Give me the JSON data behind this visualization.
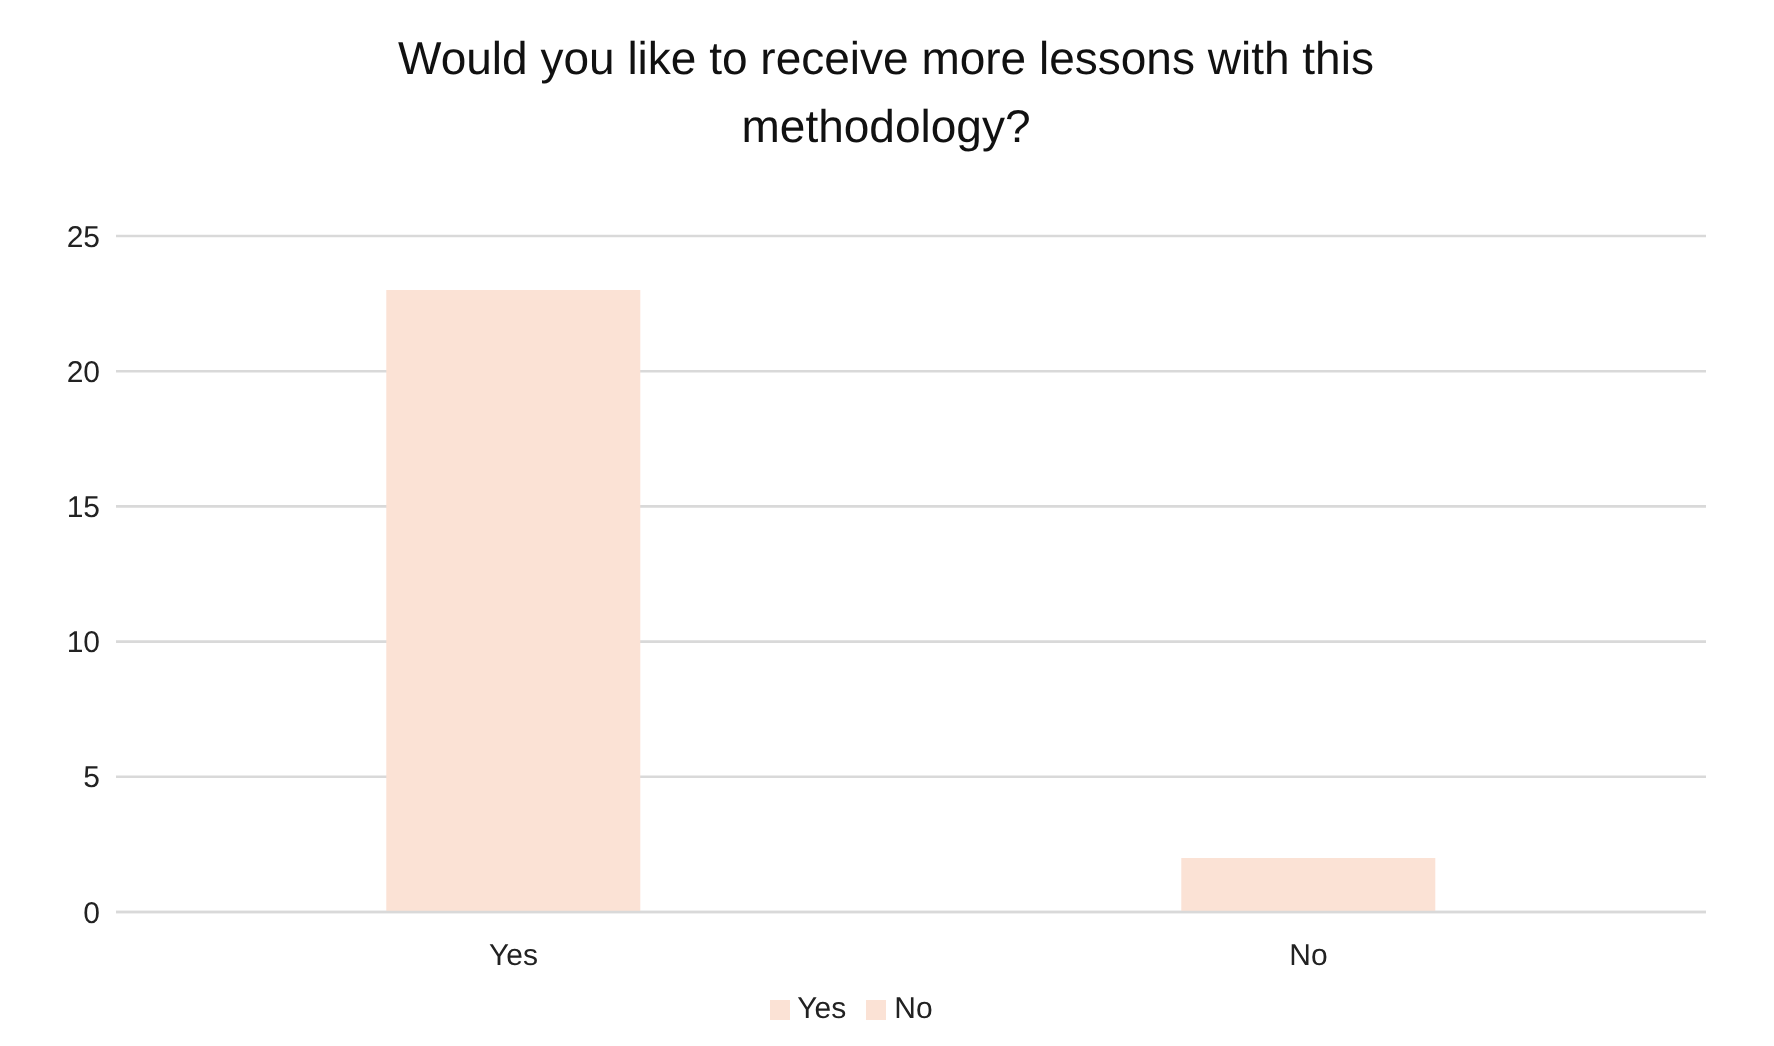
{
  "chart_data": {
    "type": "bar",
    "title": "Would you like to receive more lessons with this methodology?",
    "categories": [
      "Yes",
      "No"
    ],
    "series": [
      {
        "name": "Yes",
        "color": "#fbe2d5",
        "values": [
          23,
          null
        ]
      },
      {
        "name": "No",
        "color": "#fbe2d5",
        "values": [
          null,
          2
        ]
      }
    ],
    "stacked": true,
    "ylim": [
      0,
      25
    ],
    "yticks": [
      0,
      5,
      10,
      15,
      20,
      25
    ],
    "grid": "y",
    "legend": "bottom"
  }
}
